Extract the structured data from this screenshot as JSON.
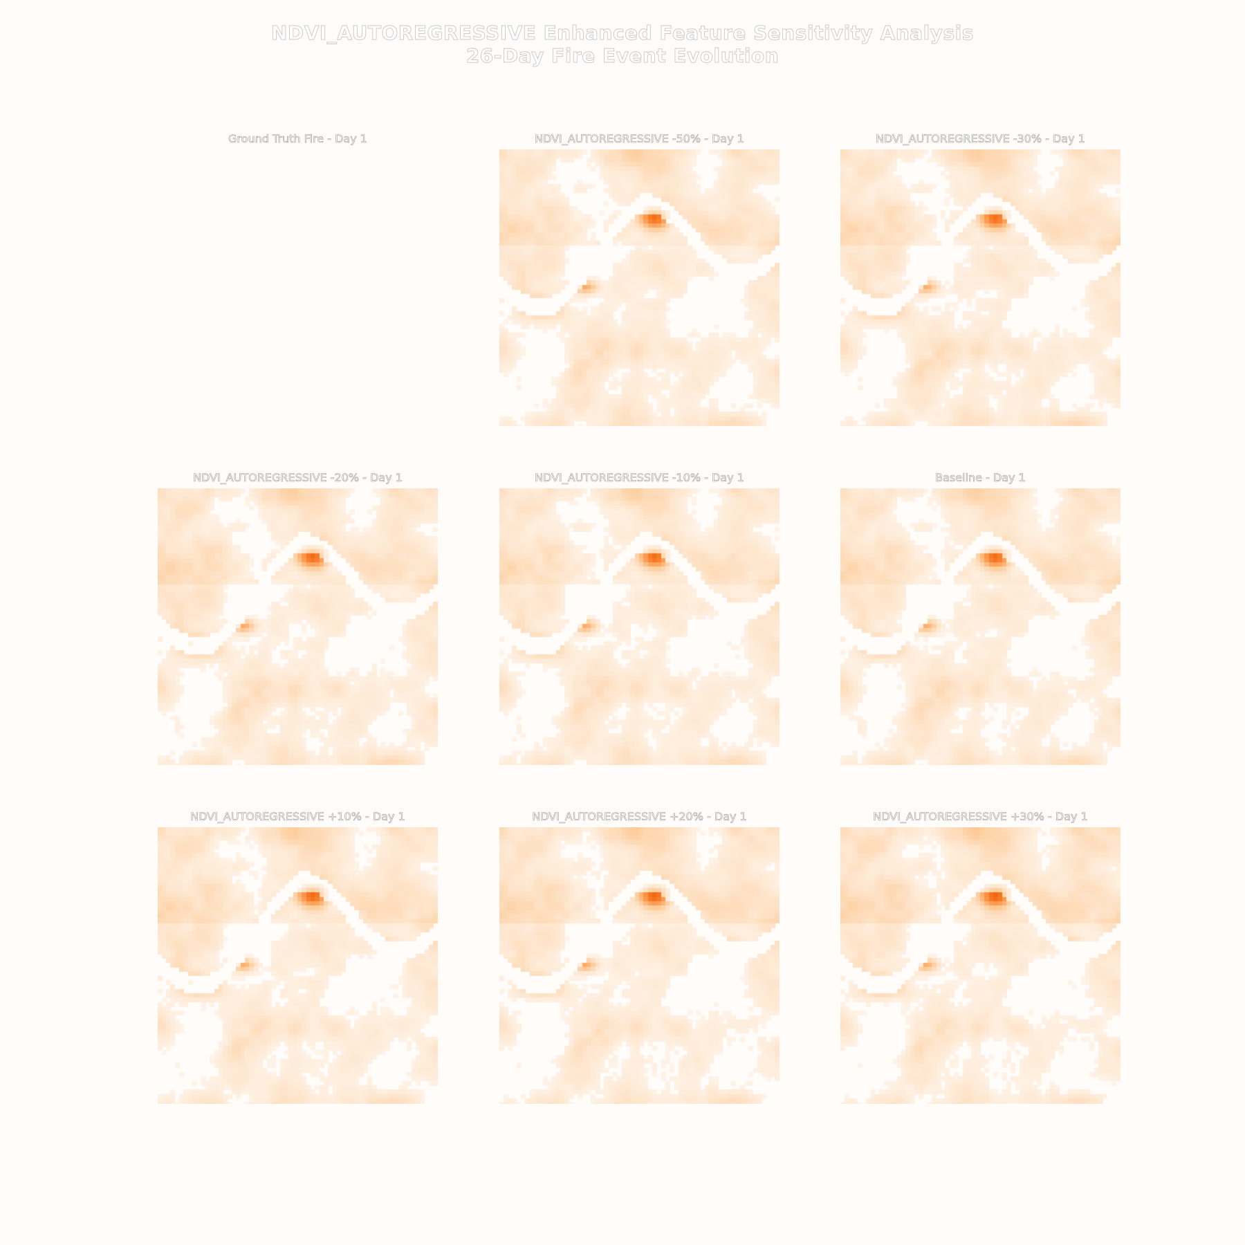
{
  "figure": {
    "title_line1": "NDVI_AUTOREGRESSIVE Enhanced Feature Sensitivity Analysis",
    "title_line2": "26-Day Fire Event Evolution"
  },
  "chart_data": {
    "type": "heatmap",
    "colormap": "Oranges",
    "colormap_colors": [
      "#fff5eb",
      "#fee6ce",
      "#fdd0a2",
      "#fdae6b",
      "#fd8d3c",
      "#f16913",
      "#d94801",
      "#8c2d04"
    ],
    "grid": false,
    "axes_visible": false,
    "panels": [
      {
        "title": "Ground Truth Fire - Day 1",
        "kind": "ground_truth",
        "perturbation": null
      },
      {
        "title": "NDVI_AUTOREGRESSIVE -50% - Day 1",
        "kind": "prediction",
        "perturbation": -50
      },
      {
        "title": "NDVI_AUTOREGRESSIVE -30% - Day 1",
        "kind": "prediction",
        "perturbation": -30
      },
      {
        "title": "NDVI_AUTOREGRESSIVE -20% - Day 1",
        "kind": "prediction",
        "perturbation": -20
      },
      {
        "title": "NDVI_AUTOREGRESSIVE -10% - Day 1",
        "kind": "prediction",
        "perturbation": -10
      },
      {
        "title": "Baseline - Day 1",
        "kind": "prediction",
        "perturbation": 0
      },
      {
        "title": "NDVI_AUTOREGRESSIVE +10% - Day 1",
        "kind": "prediction",
        "perturbation": 10
      },
      {
        "title": "NDVI_AUTOREGRESSIVE +20% - Day 1",
        "kind": "prediction",
        "perturbation": 20
      },
      {
        "title": "NDVI_AUTOREGRESSIVE +30% - Day 1",
        "kind": "prediction",
        "perturbation": 30
      }
    ]
  }
}
